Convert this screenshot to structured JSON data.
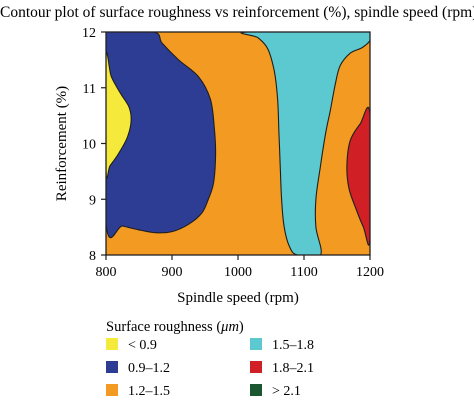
{
  "chart_data": {
    "type": "contour",
    "title": "Contour plot of surface roughness vs reinforcement (%), spindle speed (rpm)",
    "xlabel": "Spindle speed (rpm)",
    "ylabel": "Reinforcement (%)",
    "xlim": [
      800,
      1200
    ],
    "ylim": [
      8,
      12
    ],
    "x_ticks": [
      800,
      900,
      1000,
      1100,
      1200
    ],
    "y_ticks": [
      8,
      9,
      10,
      11,
      12
    ],
    "x_tick_labels": [
      "800",
      "900",
      "1000",
      "1100",
      "1200"
    ],
    "y_tick_labels": [
      "8",
      "9",
      "10",
      "11",
      "12"
    ],
    "legend_title_prefix": "Surface roughness (",
    "legend_title_unit": "μm",
    "legend_title_suffix": ")",
    "legend": [
      {
        "label": "< 0.9",
        "color": "#f5ea3c"
      },
      {
        "label": "0.9–1.2",
        "color": "#2e3d94"
      },
      {
        "label": "1.2–1.5",
        "color": "#f29a21"
      },
      {
        "label": "1.5–1.8",
        "color": "#5bc9cf"
      },
      {
        "label": "1.8–2.1",
        "color": "#d11f26"
      },
      {
        "label": "> 2.1",
        "color": "#1a5630"
      }
    ],
    "regions": [
      {
        "name": "roughness-1.2-1.5",
        "color": "#f29a21",
        "points": [
          [
            800,
            8
          ],
          [
            1200,
            8
          ],
          [
            1200,
            12
          ],
          [
            800,
            12
          ]
        ]
      },
      {
        "name": "roughness-0.9-1.2",
        "color": "#2e3d94",
        "points": [
          [
            800,
            12
          ],
          [
            872,
            12
          ],
          [
            885,
            11.8
          ],
          [
            910,
            11.5
          ],
          [
            940,
            11.2
          ],
          [
            958,
            10.8
          ],
          [
            964,
            10.3
          ],
          [
            966,
            9.8
          ],
          [
            963,
            9.3
          ],
          [
            955,
            9.0
          ],
          [
            945,
            8.75
          ],
          [
            925,
            8.55
          ],
          [
            900,
            8.42
          ],
          [
            875,
            8.4
          ],
          [
            850,
            8.45
          ],
          [
            825,
            8.52
          ],
          [
            800,
            8.58
          ]
        ]
      },
      {
        "name": "roughness-below-0.9",
        "color": "#f5ea3c",
        "points": [
          [
            800,
            11.55
          ],
          [
            808,
            11.2
          ],
          [
            822,
            10.9
          ],
          [
            835,
            10.65
          ],
          [
            838,
            10.4
          ],
          [
            832,
            10.1
          ],
          [
            818,
            9.8
          ],
          [
            806,
            9.6
          ],
          [
            800,
            9.5
          ]
        ]
      },
      {
        "name": "roughness-1.5-1.8",
        "color": "#5bc9cf",
        "points": [
          [
            1015,
            12
          ],
          [
            1200,
            12
          ],
          [
            1200,
            11.85
          ],
          [
            1188,
            11.72
          ],
          [
            1170,
            11.62
          ],
          [
            1155,
            11.4
          ],
          [
            1148,
            11.1
          ],
          [
            1140,
            10.6
          ],
          [
            1133,
            10.2
          ],
          [
            1125,
            9.6
          ],
          [
            1118,
            9.0
          ],
          [
            1118,
            8.5
          ],
          [
            1125,
            8
          ],
          [
            1090,
            8
          ],
          [
            1078,
            8.15
          ],
          [
            1070,
            8.5
          ],
          [
            1066,
            9.0
          ],
          [
            1064,
            9.6
          ],
          [
            1062,
            10.2
          ],
          [
            1060,
            10.8
          ],
          [
            1055,
            11.3
          ],
          [
            1045,
            11.7
          ],
          [
            1030,
            11.9
          ]
        ]
      },
      {
        "name": "roughness-1.8-2.1",
        "color": "#d11f26",
        "points": [
          [
            1200,
            10.52
          ],
          [
            1185,
            10.35
          ],
          [
            1170,
            10.05
          ],
          [
            1165,
            9.6
          ],
          [
            1168,
            9.2
          ],
          [
            1178,
            8.85
          ],
          [
            1190,
            8.5
          ],
          [
            1200,
            8.3
          ]
        ]
      }
    ]
  }
}
